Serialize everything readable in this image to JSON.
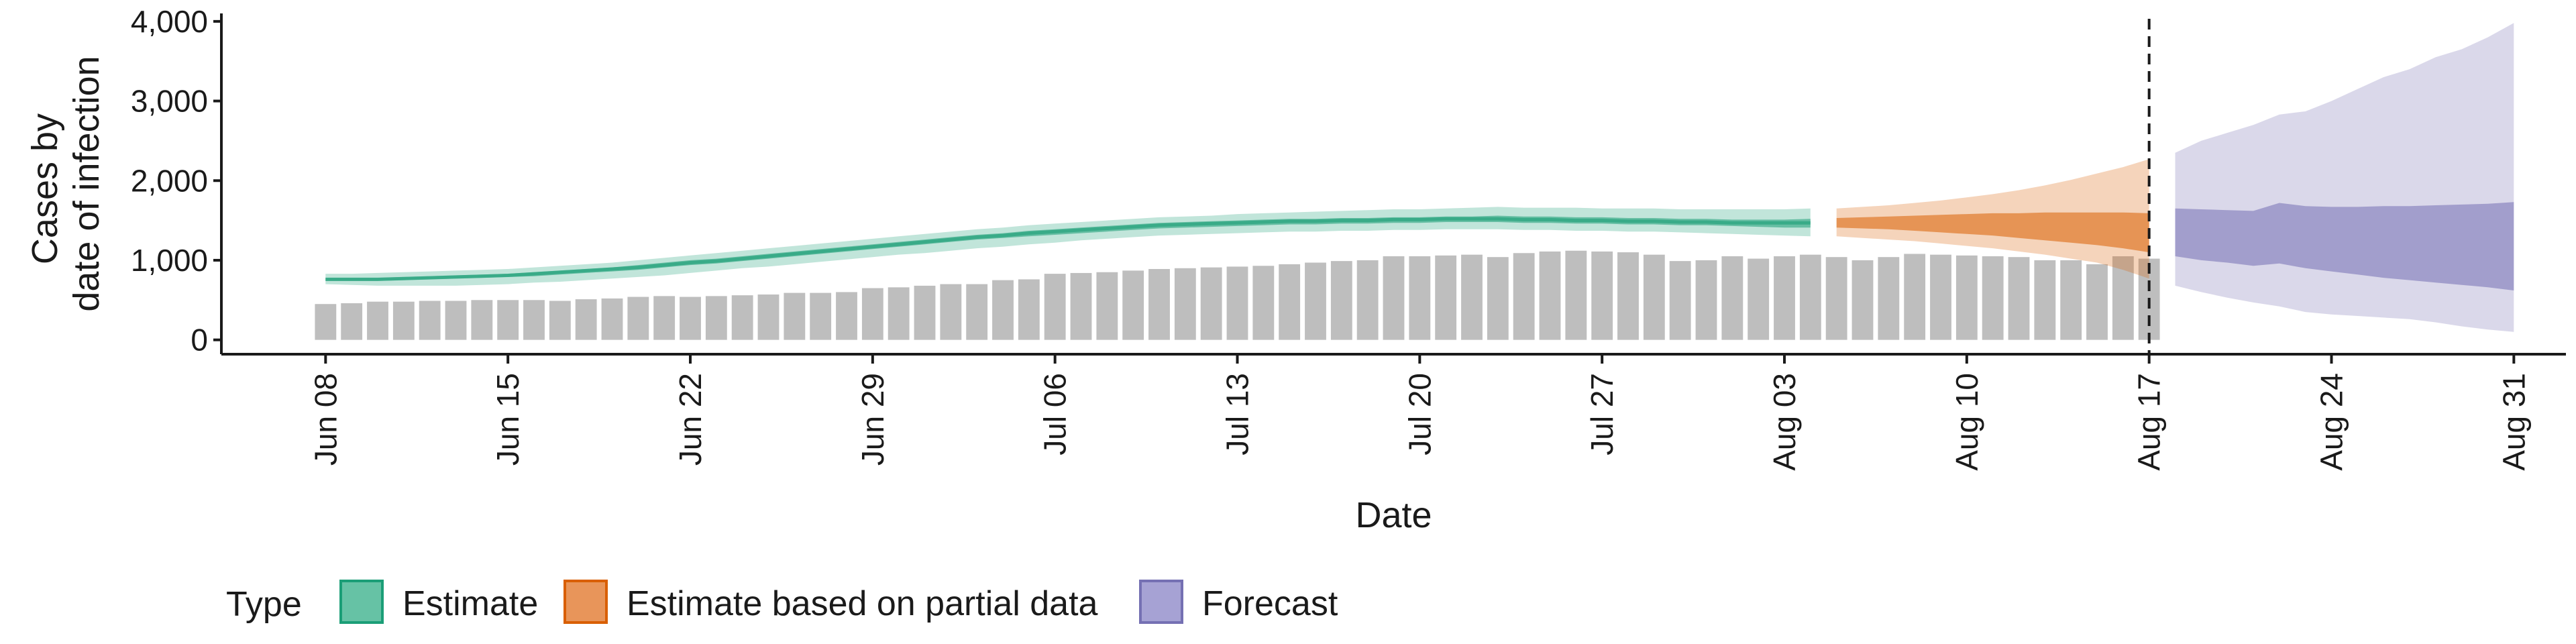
{
  "chart_data": {
    "type": "area",
    "xlabel": "Date",
    "ylabel": [
      "Cases by",
      "date of infection"
    ],
    "x_range": [
      "2020-06-04",
      "2020-09-02"
    ],
    "ylim": [
      -180,
      4100
    ],
    "yticks": [
      0,
      1000,
      2000,
      3000,
      4000
    ],
    "ytick_labels": [
      "0",
      "1,000",
      "2,000",
      "3,000",
      "4,000"
    ],
    "xticks": [
      "2020-06-08",
      "2020-06-15",
      "2020-06-22",
      "2020-06-29",
      "2020-07-06",
      "2020-07-13",
      "2020-07-20",
      "2020-07-27",
      "2020-08-03",
      "2020-08-10",
      "2020-08-17",
      "2020-08-24",
      "2020-08-31"
    ],
    "xtick_labels": [
      "Jun 08",
      "Jun 15",
      "Jun 22",
      "Jun 29",
      "Jul 06",
      "Jul 13",
      "Jul 20",
      "Jul 27",
      "Aug 03",
      "Aug 10",
      "Aug 17",
      "Aug 24",
      "Aug 31"
    ],
    "vline_date": "2020-08-17",
    "grid": false,
    "legend": {
      "title": "Type",
      "position": "bottom",
      "items": [
        {
          "label": "Estimate",
          "fill": "#66c2a5",
          "stroke": "#1b9e77"
        },
        {
          "label": "Estimate based on partial data",
          "fill": "#e8955a",
          "stroke": "#d95f02"
        },
        {
          "label": "Forecast",
          "fill": "#a6a2d4",
          "stroke": "#7570b3"
        }
      ]
    },
    "colors": {
      "bars": "#bebebe",
      "estimate": "#1b9e77",
      "partial": "#d95f02",
      "forecast": "#7570b3",
      "vline": "#1a1a1a"
    },
    "observed": {
      "start": "2020-06-08",
      "values": [
        450,
        460,
        480,
        480,
        490,
        490,
        500,
        500,
        500,
        490,
        510,
        520,
        540,
        550,
        540,
        550,
        560,
        570,
        590,
        590,
        600,
        650,
        660,
        680,
        700,
        700,
        750,
        760,
        830,
        840,
        850,
        870,
        890,
        900,
        910,
        920,
        930,
        950,
        970,
        990,
        1000,
        1050,
        1050,
        1060,
        1070,
        1040,
        1090,
        1110,
        1120,
        1110,
        1100,
        1070,
        990,
        1000,
        1050,
        1020,
        1050,
        1070,
        1040,
        1000,
        1040,
        1080,
        1070,
        1060,
        1050,
        1040,
        1000,
        1000,
        950,
        1050,
        1020
      ]
    },
    "series": [
      {
        "name": "Estimate",
        "start": "2020-06-08",
        "median": [
          760,
          760,
          760,
          770,
          780,
          790,
          800,
          810,
          830,
          850,
          870,
          890,
          910,
          940,
          970,
          990,
          1020,
          1050,
          1080,
          1110,
          1140,
          1170,
          1200,
          1230,
          1260,
          1290,
          1310,
          1340,
          1360,
          1380,
          1400,
          1420,
          1440,
          1450,
          1460,
          1470,
          1480,
          1490,
          1490,
          1500,
          1500,
          1510,
          1510,
          1520,
          1520,
          1520,
          1510,
          1510,
          1500,
          1500,
          1490,
          1490,
          1480,
          1480,
          1470,
          1470,
          1470,
          1470
        ],
        "lower50": [
          740,
          740,
          740,
          750,
          760,
          770,
          780,
          790,
          800,
          820,
          840,
          860,
          880,
          910,
          940,
          960,
          990,
          1020,
          1050,
          1080,
          1110,
          1140,
          1170,
          1200,
          1230,
          1260,
          1280,
          1300,
          1320,
          1340,
          1360,
          1380,
          1400,
          1410,
          1420,
          1430,
          1440,
          1450,
          1450,
          1460,
          1460,
          1470,
          1470,
          1480,
          1480,
          1480,
          1470,
          1470,
          1460,
          1460,
          1450,
          1450,
          1440,
          1440,
          1430,
          1420,
          1410,
          1410
        ],
        "upper50": [
          780,
          780,
          780,
          790,
          800,
          810,
          820,
          830,
          850,
          870,
          890,
          910,
          940,
          970,
          1000,
          1020,
          1050,
          1080,
          1110,
          1140,
          1170,
          1200,
          1230,
          1260,
          1290,
          1320,
          1340,
          1370,
          1390,
          1410,
          1430,
          1450,
          1470,
          1480,
          1490,
          1500,
          1510,
          1520,
          1520,
          1530,
          1530,
          1540,
          1540,
          1550,
          1550,
          1560,
          1550,
          1550,
          1540,
          1540,
          1530,
          1530,
          1520,
          1520,
          1510,
          1510,
          1510,
          1520
        ],
        "lower90": [
          700,
          690,
          680,
          680,
          680,
          680,
          690,
          700,
          720,
          730,
          750,
          770,
          790,
          810,
          840,
          870,
          900,
          920,
          950,
          980,
          1010,
          1040,
          1070,
          1090,
          1120,
          1150,
          1170,
          1200,
          1220,
          1250,
          1270,
          1290,
          1310,
          1320,
          1330,
          1340,
          1350,
          1360,
          1360,
          1370,
          1370,
          1380,
          1380,
          1390,
          1390,
          1390,
          1380,
          1380,
          1370,
          1370,
          1360,
          1360,
          1350,
          1340,
          1330,
          1320,
          1310,
          1300
        ],
        "upper90": [
          830,
          830,
          840,
          850,
          860,
          870,
          880,
          890,
          910,
          930,
          950,
          970,
          1000,
          1030,
          1060,
          1090,
          1120,
          1150,
          1180,
          1210,
          1240,
          1270,
          1300,
          1330,
          1360,
          1390,
          1410,
          1440,
          1460,
          1480,
          1500,
          1520,
          1540,
          1550,
          1560,
          1580,
          1590,
          1600,
          1610,
          1620,
          1630,
          1640,
          1640,
          1650,
          1660,
          1670,
          1660,
          1660,
          1660,
          1650,
          1650,
          1650,
          1640,
          1640,
          1640,
          1640,
          1640,
          1650
        ]
      },
      {
        "name": "Estimate based on partial data",
        "start": "2020-08-05",
        "median": [
          1470,
          1470,
          1470,
          1470,
          1460,
          1460,
          1460,
          1450,
          1440,
          1430,
          1420,
          1400,
          1380
        ],
        "lower50": [
          1410,
          1400,
          1390,
          1370,
          1350,
          1330,
          1310,
          1280,
          1250,
          1220,
          1190,
          1150,
          1100
        ],
        "upper50": [
          1530,
          1540,
          1550,
          1560,
          1570,
          1580,
          1590,
          1590,
          1600,
          1600,
          1600,
          1600,
          1590
        ],
        "lower90": [
          1300,
          1280,
          1260,
          1240,
          1210,
          1180,
          1150,
          1110,
          1070,
          1020,
          970,
          880,
          770
        ],
        "upper90": [
          1650,
          1670,
          1690,
          1720,
          1750,
          1790,
          1830,
          1880,
          1940,
          2010,
          2090,
          2170,
          2270
        ]
      },
      {
        "name": "Forecast",
        "start": "2020-08-18",
        "median": [
          1350,
          1330,
          1320,
          1320,
          1340,
          1330,
          1320,
          1300,
          1290,
          1280,
          1270,
          1250,
          1240,
          1230
        ],
        "lower50": [
          1050,
          1000,
          970,
          930,
          960,
          900,
          860,
          820,
          780,
          750,
          720,
          690,
          660,
          620
        ],
        "upper50": [
          1650,
          1640,
          1630,
          1620,
          1720,
          1680,
          1670,
          1670,
          1680,
          1680,
          1690,
          1700,
          1710,
          1730
        ],
        "lower90": [
          680,
          600,
          530,
          470,
          420,
          350,
          320,
          300,
          280,
          260,
          220,
          170,
          130,
          100
        ],
        "upper90": [
          2350,
          2500,
          2600,
          2700,
          2830,
          2870,
          3000,
          3150,
          3300,
          3400,
          3550,
          3650,
          3800,
          3980
        ]
      }
    ]
  }
}
